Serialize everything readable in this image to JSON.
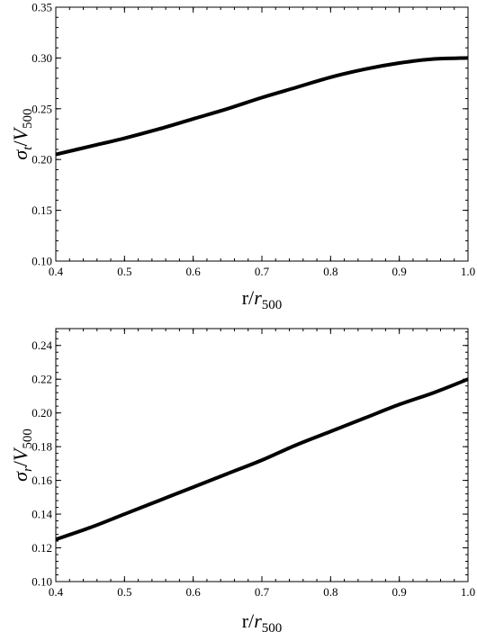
{
  "chart_data": [
    {
      "type": "line",
      "xlabel_base": "r/",
      "xlabel_var": "r",
      "xlabel_sub": "500",
      "ylabel_sym": "σ",
      "ylabel_sym_sub": "t",
      "ylabel_den": "/V",
      "ylabel_den_sub": "500",
      "xlim": [
        0.4,
        1.0
      ],
      "ylim": [
        0.1,
        0.35
      ],
      "xticks": [
        "0.4",
        "0.5",
        "0.6",
        "0.7",
        "0.8",
        "0.9",
        "1.0"
      ],
      "yticks": [
        "0.10",
        "0.15",
        "0.20",
        "0.25",
        "0.30",
        "0.35"
      ],
      "series": [
        {
          "x": [
            0.4,
            0.45,
            0.5,
            0.55,
            0.6,
            0.65,
            0.7,
            0.75,
            0.8,
            0.85,
            0.9,
            0.95,
            1.0
          ],
          "values": [
            0.205,
            0.213,
            0.221,
            0.23,
            0.24,
            0.25,
            0.261,
            0.271,
            0.281,
            0.289,
            0.295,
            0.299,
            0.3
          ]
        }
      ],
      "grid": false
    },
    {
      "type": "line",
      "xlabel_base": "r/",
      "xlabel_var": "r",
      "xlabel_sub": "500",
      "ylabel_sym": "σ",
      "ylabel_sym_sub": "r",
      "ylabel_den": "/V",
      "ylabel_den_sub": "500",
      "xlim": [
        0.4,
        1.0
      ],
      "ylim": [
        0.1,
        0.25
      ],
      "xticks": [
        "0.4",
        "0.5",
        "0.6",
        "0.7",
        "0.8",
        "0.9",
        "1.0"
      ],
      "yticks": [
        "0.10",
        "0.12",
        "0.14",
        "0.16",
        "0.18",
        "0.20",
        "0.22",
        "0.24"
      ],
      "series": [
        {
          "x": [
            0.4,
            0.45,
            0.5,
            0.55,
            0.6,
            0.65,
            0.7,
            0.75,
            0.8,
            0.85,
            0.9,
            0.95,
            1.0
          ],
          "values": [
            0.125,
            0.132,
            0.14,
            0.148,
            0.156,
            0.164,
            0.172,
            0.181,
            0.189,
            0.197,
            0.205,
            0.212,
            0.22
          ]
        }
      ],
      "grid": false
    }
  ]
}
